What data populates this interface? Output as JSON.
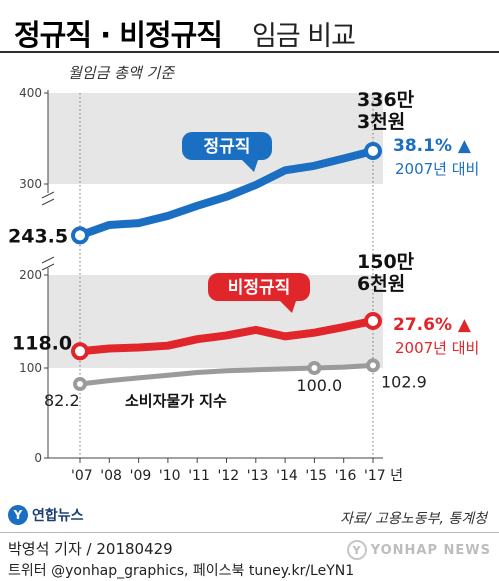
{
  "header": {
    "title_bold": "정규직 · 비정규직",
    "title_light": "임금 비교",
    "unit_note": "월임금 총액 기준"
  },
  "colors": {
    "regular": "#1b6fc2",
    "irregular": "#e0262b",
    "index": "#9b9b9b",
    "band": "#e6e6e6"
  },
  "chart_data": {
    "type": "line",
    "categories": [
      "'07",
      "'08",
      "'09",
      "'10",
      "'11",
      "'12",
      "'13",
      "'14",
      "'15",
      "'16",
      "'17 년"
    ],
    "x_tick_years": [
      2007,
      2008,
      2009,
      2010,
      2011,
      2012,
      2013,
      2014,
      2015,
      2016,
      2017
    ],
    "axes": {
      "upper": {
        "ylim": [
          300,
          400
        ],
        "ticks": [
          "400",
          "300"
        ]
      },
      "middle": {
        "ylim": [
          100,
          200
        ],
        "ticks": [
          "200",
          "100"
        ]
      },
      "lower": {
        "ylim": [
          0,
          100
        ],
        "ticks": [
          "0"
        ]
      }
    },
    "series": [
      {
        "name": "정규직",
        "color": "#1b6fc2",
        "values": [
          243.5,
          255,
          257,
          265,
          276,
          286,
          299,
          315,
          320,
          328,
          336.3
        ],
        "start_label": "243.5",
        "end_label_lines": [
          "336만",
          "3천원"
        ],
        "change_pct": "38.1%",
        "change_note": "2007년 대비"
      },
      {
        "name": "비정규직",
        "color": "#e0262b",
        "values": [
          118.0,
          121,
          122,
          124,
          131,
          135,
          141,
          134,
          138,
          144,
          150.6
        ],
        "start_label": "118.0",
        "end_label_lines": [
          "150만",
          "6천원"
        ],
        "change_pct": "27.6%",
        "change_note": "2007년 대비"
      },
      {
        "name": "소비자물가 지수",
        "color": "#9b9b9b",
        "values": [
          82.2,
          86,
          89,
          92,
          95,
          97,
          98,
          99,
          100.0,
          101,
          102.9
        ],
        "start_label": "82.2",
        "marked_labels": [
          {
            "year": 2015,
            "label": "100.0"
          },
          {
            "year": 2017,
            "label": "102.9"
          }
        ]
      }
    ]
  },
  "footer": {
    "logo_text": "연합뉴스",
    "source": "자료/ 고용노동부, 통계청",
    "credit_line1": "박영석 기자 / 20180429",
    "credit_line2": "트위터 @yonhap_graphics, 페이스북 tuney.kr/LeYN1",
    "watermark": "YONHAP NEWS"
  }
}
